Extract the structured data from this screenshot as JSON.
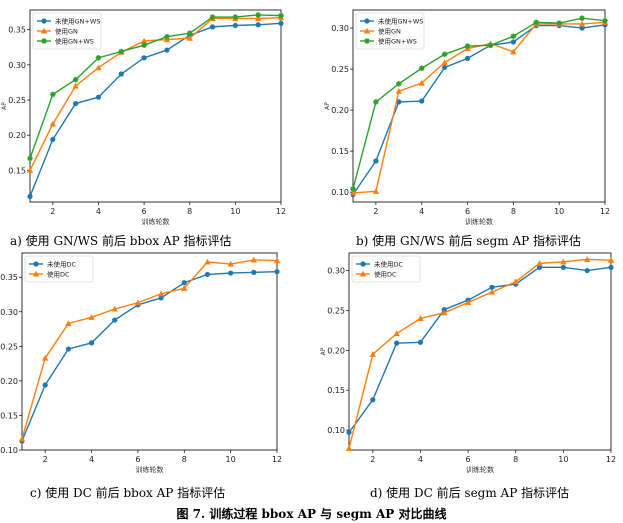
{
  "figure_title": "图 7. 训练过程 bbox AP 与 segm AP 对比曲线",
  "captions": [
    "a)  使用 GN/WS 前后 bbox AP 指标评估",
    "b)  使用 GN/WS 前后 segm AP 指标评估",
    "c)  使用 DC 前后 bbox AP 指标评估",
    "d)  使用 DC 前后 segm AP 指标评估"
  ],
  "colors": {
    "blue": "#1f77b4",
    "orange": "#ff7f0e",
    "green": "#2ca02c"
  },
  "chart_data": [
    {
      "type": "line",
      "xlabel": "训练轮数",
      "ylabel": "AP",
      "x": [
        1,
        2,
        3,
        4,
        5,
        6,
        7,
        8,
        9,
        10,
        11,
        12
      ],
      "xticks": [
        "2",
        "4",
        "6",
        "8",
        "10",
        "12"
      ],
      "yticks": [
        "0.15",
        "0.20",
        "0.25",
        "0.30",
        "0.35"
      ],
      "ylim": [
        0.105,
        0.378
      ],
      "legend_position": "top-left",
      "series": [
        {
          "name": "未使用GN+WS",
          "values": [
            0.113,
            0.194,
            0.245,
            0.254,
            0.287,
            0.31,
            0.321,
            0.342,
            0.354,
            0.356,
            0.357,
            0.359
          ]
        },
        {
          "name": "使用GN",
          "values": [
            0.15,
            0.216,
            0.27,
            0.296,
            0.318,
            0.334,
            0.336,
            0.338,
            0.366,
            0.366,
            0.366,
            0.367
          ]
        },
        {
          "name": "使用GN+WS",
          "values": [
            0.167,
            0.258,
            0.279,
            0.31,
            0.319,
            0.328,
            0.34,
            0.345,
            0.368,
            0.368,
            0.371,
            0.37
          ]
        }
      ]
    },
    {
      "type": "line",
      "xlabel": "训练轮数",
      "ylabel": "AP",
      "x": [
        1,
        2,
        3,
        4,
        5,
        6,
        7,
        8,
        9,
        10,
        11,
        12
      ],
      "xticks": [
        "2",
        "4",
        "6",
        "8",
        "10",
        "12"
      ],
      "yticks": [
        "0.10",
        "0.15",
        "0.20",
        "0.25",
        "0.30"
      ],
      "ylim": [
        0.088,
        0.322
      ],
      "legend_position": "top-left",
      "series": [
        {
          "name": "未使用GN+WS",
          "values": [
            0.097,
            0.138,
            0.21,
            0.211,
            0.252,
            0.263,
            0.279,
            0.283,
            0.303,
            0.303,
            0.3,
            0.304
          ]
        },
        {
          "name": "使用GN",
          "values": [
            0.099,
            0.101,
            0.223,
            0.233,
            0.258,
            0.275,
            0.281,
            0.271,
            0.305,
            0.305,
            0.305,
            0.307
          ]
        },
        {
          "name": "使用GN+WS",
          "values": [
            0.104,
            0.21,
            0.232,
            0.251,
            0.268,
            0.278,
            0.279,
            0.29,
            0.307,
            0.306,
            0.312,
            0.309
          ]
        }
      ]
    },
    {
      "type": "line",
      "xlabel": "训练轮数",
      "ylabel": "AP",
      "x": [
        1,
        2,
        3,
        4,
        5,
        6,
        7,
        8,
        9,
        10,
        11,
        12
      ],
      "xticks": [
        "2",
        "4",
        "6",
        "8",
        "10",
        "12"
      ],
      "yticks": [
        "0.10",
        "0.15",
        "0.20",
        "0.25",
        "0.30",
        "0.35"
      ],
      "ylim": [
        0.1,
        0.385
      ],
      "legend_position": "top-left",
      "series": [
        {
          "name": "未使用DC",
          "values": [
            0.113,
            0.194,
            0.246,
            0.255,
            0.288,
            0.31,
            0.32,
            0.342,
            0.354,
            0.356,
            0.357,
            0.358
          ]
        },
        {
          "name": "使用DC",
          "values": [
            0.116,
            0.233,
            0.283,
            0.292,
            0.304,
            0.313,
            0.326,
            0.334,
            0.372,
            0.369,
            0.375,
            0.374
          ]
        }
      ]
    },
    {
      "type": "line",
      "xlabel": "训练轮数",
      "ylabel": "AP",
      "x": [
        1,
        2,
        3,
        4,
        5,
        6,
        7,
        8,
        9,
        10,
        11,
        12
      ],
      "xticks": [
        "2",
        "4",
        "6",
        "8",
        "10",
        "12"
      ],
      "yticks": [
        "0.10",
        "0.15",
        "0.20",
        "0.25",
        "0.30"
      ],
      "ylim": [
        0.075,
        0.322
      ],
      "legend_position": "top-left",
      "series": [
        {
          "name": "未使用DC",
          "values": [
            0.097,
            0.138,
            0.209,
            0.21,
            0.251,
            0.263,
            0.279,
            0.283,
            0.304,
            0.304,
            0.3,
            0.304
          ]
        },
        {
          "name": "使用DC",
          "values": [
            0.077,
            0.195,
            0.221,
            0.24,
            0.247,
            0.26,
            0.273,
            0.286,
            0.309,
            0.311,
            0.314,
            0.313
          ]
        }
      ]
    }
  ]
}
